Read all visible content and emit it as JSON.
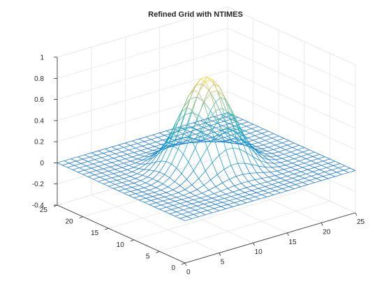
{
  "chart_data": {
    "type": "mesh",
    "title": "Refined Grid with NTIMES",
    "x_range": [
      0,
      25
    ],
    "y_range": [
      0,
      25
    ],
    "z_range": [
      -0.4,
      1
    ],
    "x_ticks": [
      "0",
      "5",
      "10",
      "15",
      "20",
      "25"
    ],
    "y_ticks": [
      "0",
      "5",
      "10",
      "15",
      "20",
      "25"
    ],
    "z_ticks": [
      "-0.4",
      "-0.2",
      "0",
      "0.2",
      "0.4",
      "0.6",
      "0.8",
      "1"
    ],
    "grid": true,
    "colormap": "parula",
    "grid_count": 25,
    "peak_value": 0.85,
    "corner_value": 0.0
  },
  "colors": {
    "background": "#ffffff",
    "grid": "#e6e6e6",
    "axis": "#262626"
  }
}
